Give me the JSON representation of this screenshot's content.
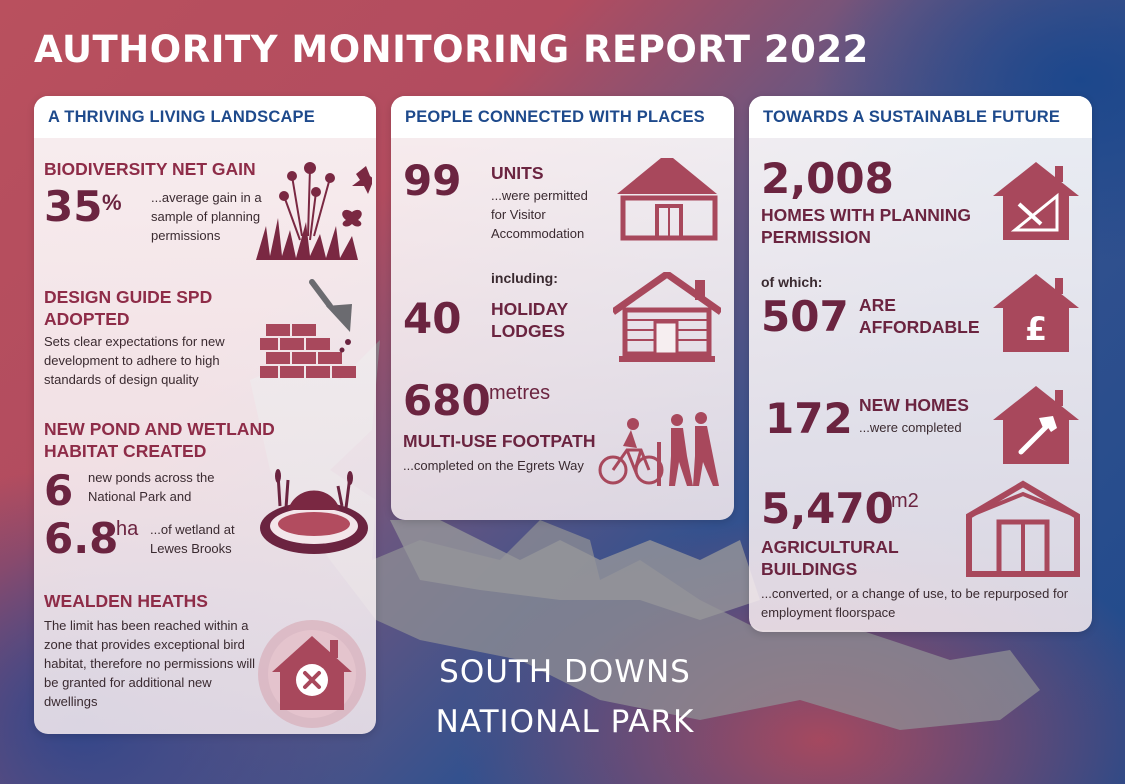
{
  "title": "AUTHORITY MONITORING REPORT 2022",
  "colors": {
    "navy": "#1e4a8c",
    "maroon": "#6b2440",
    "rose": "#b24c5f",
    "icon": "#a8485c"
  },
  "footer": {
    "line1": "SOUTH DOWNS",
    "line2": "NATIONAL PARK"
  },
  "landscape": {
    "heading": "A THRIVING LIVING LANDSCAPE",
    "biodiversity": {
      "title": "BIODIVERSITY NET GAIN",
      "value": "35",
      "unit": "%",
      "text": "...average gain in a sample of planning permissions",
      "icon": "plants-icon"
    },
    "design": {
      "title_line1": "DESIGN GUIDE SPD",
      "title_line2": "ADOPTED",
      "text": "Sets clear expectations for new development to adhere to high standards of design quality",
      "icon": "trowel-bricks-icon"
    },
    "pond": {
      "title_line1": "NEW POND AND WETLAND",
      "title_line2": "HABITAT CREATED",
      "ponds_value": "6",
      "ponds_text": "new ponds across the National Park and",
      "wetland_value": "6.8",
      "wetland_unit": "ha",
      "wetland_text": "...of wetland at Lewes Brooks",
      "icon": "pond-icon"
    },
    "heaths": {
      "title": "WEALDEN HEATHS",
      "text": "The limit has been reached within a zone that provides exceptional bird habitat, therefore no permissions will be granted for additional new dwellings",
      "icon": "house-cross-icon"
    }
  },
  "people": {
    "heading": "PEOPLE CONNECTED WITH PLACES",
    "units": {
      "value": "99",
      "label": "UNITS",
      "text": "...were permitted for Visitor Accommodation",
      "icon": "yurt-icon"
    },
    "lodges": {
      "prefix": "including:",
      "value": "40",
      "label_line1": "HOLIDAY",
      "label_line2": "LODGES",
      "icon": "lodge-icon"
    },
    "footpath": {
      "value": "680",
      "unit": "metres",
      "label": "MULTI-USE FOOTPATH",
      "text": "...completed on the Egrets Way",
      "icon": "cyclist-walkers-icon"
    }
  },
  "future": {
    "heading": "TOWARDS A SUSTAINABLE FUTURE",
    "homes": {
      "value": "2,008",
      "label_line1": "HOMES WITH PLANNING",
      "label_line2": "PERMISSION",
      "icon": "house-design-icon"
    },
    "affordable": {
      "prefix": "of which:",
      "value": "507",
      "label_line1": "ARE",
      "label_line2": "AFFORDABLE",
      "icon": "house-pound-icon"
    },
    "new_homes": {
      "value": "172",
      "label": "NEW HOMES",
      "text": "...were completed",
      "icon": "house-hammer-icon"
    },
    "agri": {
      "value": "5,470",
      "unit": "m2",
      "label_line1": "AGRICULTURAL",
      "label_line2": "BUILDINGS",
      "text": "...converted, or a change of use, to be repurposed for employment floorspace",
      "icon": "barn-icon"
    }
  }
}
